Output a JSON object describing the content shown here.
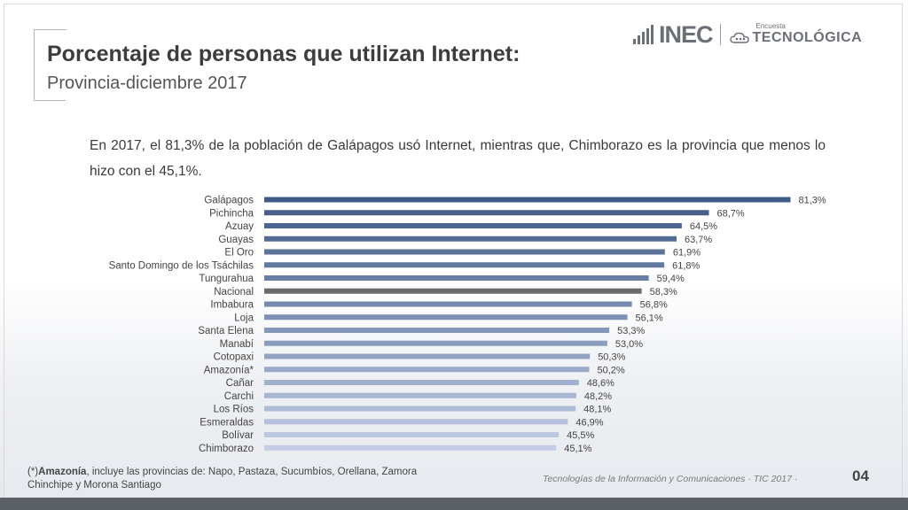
{
  "header": {
    "title": "Porcentaje de personas que utilizan Internet:",
    "subtitle": "Provincia-diciembre 2017",
    "logo_inec": "INEC",
    "logo_encuesta": "Encuesta",
    "logo_tecnologica": "TECNOLÓGICA"
  },
  "intro_text": "En 2017, el 81,3% de la población de Galápagos usó Internet, mientras que, Chimborazo es la provincia que menos lo hizo con el 45,1%.",
  "footnote": {
    "prefix": "(*)",
    "bold": "Amazonía",
    "rest": ", incluye las provincias de: Napo, Pastaza, Sucumbíos, Orellana, Zamora Chinchipe y Morona Santiago"
  },
  "footer": {
    "text": "Tecnologías de la Información y Comunicaciones · TIC 2017  ·",
    "page": "04"
  },
  "colors": {
    "bar_dark": "#3f5a85",
    "bar_light": "#c3cde6",
    "bar_national": "#6b6b6b",
    "label_text": "#444444"
  },
  "chart_data": {
    "type": "bar",
    "orientation": "horizontal",
    "categories": [
      "Galápagos",
      "Pichincha",
      "Azuay",
      "Guayas",
      "El Oro",
      "Santo Domingo de los Tsáchilas",
      "Tungurahua",
      "Nacional",
      "Imbabura",
      "Loja",
      "Santa Elena",
      "Manabí",
      "Cotopaxi",
      "Amazonía*",
      "Cañar",
      "Carchi",
      "Los Ríos",
      "Esmeraldas",
      "Bolívar",
      "Chimborazo"
    ],
    "values": [
      81.3,
      68.7,
      64.5,
      63.7,
      61.9,
      61.8,
      59.4,
      58.3,
      56.8,
      56.1,
      53.3,
      53.0,
      50.3,
      50.2,
      48.6,
      48.2,
      48.1,
      46.9,
      45.5,
      45.1
    ],
    "value_labels": [
      "81,3%",
      "68,7%",
      "64,5%",
      "63,7%",
      "61,9%",
      "61,8%",
      "59,4%",
      "58,3%",
      "56,8%",
      "56,1%",
      "53,3%",
      "53,0%",
      "50,3%",
      "50,2%",
      "48,6%",
      "48,2%",
      "48,1%",
      "46,9%",
      "45,5%",
      "45,1%"
    ],
    "highlight_category": "Nacional",
    "xlim": [
      0,
      100
    ],
    "title": "",
    "xlabel": "",
    "ylabel": ""
  }
}
